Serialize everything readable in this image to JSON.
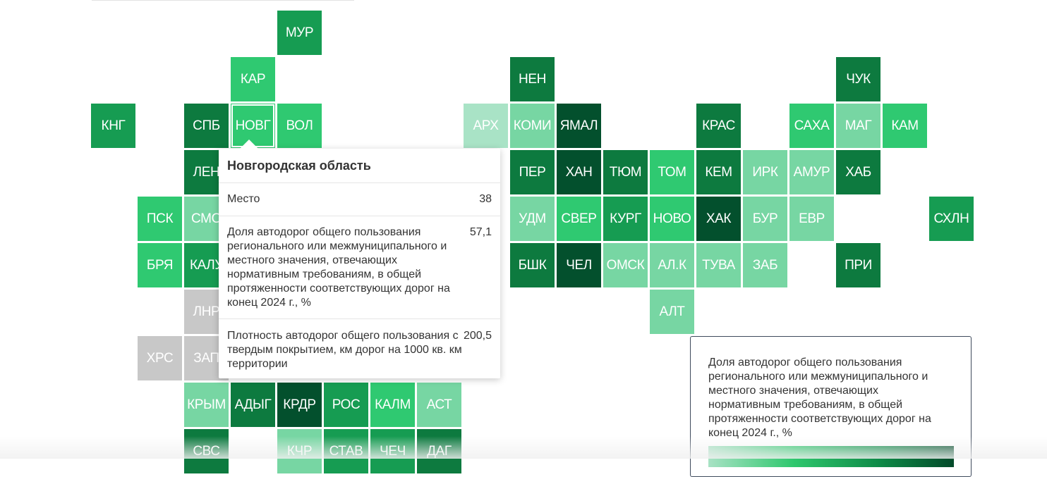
{
  "regions": [
    {
      "id": "mur",
      "label": "МУР",
      "rank": 2,
      "col": 6,
      "row": 0
    },
    {
      "id": "kar",
      "label": "КАР",
      "rank": 3,
      "col": 5,
      "row": 1
    },
    {
      "id": "nen",
      "label": "НЕН",
      "rank": 1,
      "col": 11,
      "row": 1
    },
    {
      "id": "chuk",
      "label": "ЧУК",
      "rank": 1,
      "col": 18,
      "row": 1
    },
    {
      "id": "kng",
      "label": "КНГ",
      "rank": 2,
      "col": 2,
      "row": 2
    },
    {
      "id": "spb",
      "label": "СПБ",
      "rank": 1,
      "col": 4,
      "row": 2
    },
    {
      "id": "novg",
      "label": "НОВГ",
      "rank": 3,
      "col": 5,
      "row": 2,
      "active": true
    },
    {
      "id": "vol",
      "label": "ВОЛ",
      "rank": 3,
      "col": 6,
      "row": 2
    },
    {
      "id": "arh",
      "label": "АРХ",
      "rank": 5,
      "col": 10,
      "row": 2
    },
    {
      "id": "komi",
      "label": "КОМИ",
      "rank": 4,
      "col": 11,
      "row": 2
    },
    {
      "id": "yamal",
      "label": "ЯМАЛ",
      "rank": 0,
      "col": 12,
      "row": 2
    },
    {
      "id": "kras",
      "label": "КРАС",
      "rank": 1,
      "col": 15,
      "row": 2
    },
    {
      "id": "saha",
      "label": "САХА",
      "rank": 3,
      "col": 17,
      "row": 2
    },
    {
      "id": "mag",
      "label": "МАГ",
      "rank": 4,
      "col": 18,
      "row": 2
    },
    {
      "id": "kam",
      "label": "КАМ",
      "rank": 3,
      "col": 19,
      "row": 2
    },
    {
      "id": "len",
      "label": "ЛЕН",
      "rank": 1,
      "col": 4,
      "row": 3
    },
    {
      "id": "per",
      "label": "ПЕР",
      "rank": 1,
      "col": 11,
      "row": 3
    },
    {
      "id": "han",
      "label": "ХАН",
      "rank": 0,
      "col": 12,
      "row": 3
    },
    {
      "id": "tyum",
      "label": "ТЮМ",
      "rank": 1,
      "col": 13,
      "row": 3
    },
    {
      "id": "tom",
      "label": "ТОМ",
      "rank": 3,
      "col": 14,
      "row": 3
    },
    {
      "id": "kem",
      "label": "КЕМ",
      "rank": 1,
      "col": 15,
      "row": 3
    },
    {
      "id": "irk",
      "label": "ИРК",
      "rank": 4,
      "col": 16,
      "row": 3
    },
    {
      "id": "amur",
      "label": "АМУР",
      "rank": 4,
      "col": 17,
      "row": 3
    },
    {
      "id": "hab",
      "label": "ХАБ",
      "rank": 1,
      "col": 18,
      "row": 3
    },
    {
      "id": "psk",
      "label": "ПСК",
      "rank": 3,
      "col": 3,
      "row": 4
    },
    {
      "id": "smo",
      "label": "СМО",
      "rank": 4,
      "col": 4,
      "row": 4
    },
    {
      "id": "udm",
      "label": "УДМ",
      "rank": 4,
      "col": 11,
      "row": 4
    },
    {
      "id": "sver",
      "label": "СВЕР",
      "rank": 3,
      "col": 12,
      "row": 4
    },
    {
      "id": "kurg",
      "label": "КУРГ",
      "rank": 2,
      "col": 13,
      "row": 4
    },
    {
      "id": "novo",
      "label": "НОВО",
      "rank": 3,
      "col": 14,
      "row": 4
    },
    {
      "id": "hak",
      "label": "ХАК",
      "rank": 0,
      "col": 15,
      "row": 4
    },
    {
      "id": "bur",
      "label": "БУР",
      "rank": 4,
      "col": 16,
      "row": 4
    },
    {
      "id": "evr",
      "label": "ЕВР",
      "rank": 4,
      "col": 17,
      "row": 4
    },
    {
      "id": "shln",
      "label": "СХЛН",
      "rank": 2,
      "col": 20,
      "row": 4
    },
    {
      "id": "brya",
      "label": "БРЯ",
      "rank": 3,
      "col": 3,
      "row": 5
    },
    {
      "id": "kalu",
      "label": "КАЛУ",
      "rank": 2,
      "col": 4,
      "row": 5
    },
    {
      "id": "bshk",
      "label": "БШК",
      "rank": 1,
      "col": 11,
      "row": 5
    },
    {
      "id": "chel",
      "label": "ЧЕЛ",
      "rank": 0,
      "col": 12,
      "row": 5
    },
    {
      "id": "omsk",
      "label": "ОМСК",
      "rank": 4,
      "col": 13,
      "row": 5
    },
    {
      "id": "alk",
      "label": "АЛ.К",
      "rank": 4,
      "col": 14,
      "row": 5
    },
    {
      "id": "tuva",
      "label": "ТУВА",
      "rank": 4,
      "col": 15,
      "row": 5
    },
    {
      "id": "zab",
      "label": "ЗАБ",
      "rank": 4,
      "col": 16,
      "row": 5
    },
    {
      "id": "pri",
      "label": "ПРИ",
      "rank": 1,
      "col": 18,
      "row": 5
    },
    {
      "id": "lnr",
      "label": "ЛНР",
      "rank": "na",
      "col": 4,
      "row": 6
    },
    {
      "id": "alt",
      "label": "АЛТ",
      "rank": 4,
      "col": 14,
      "row": 6
    },
    {
      "id": "hrs",
      "label": "ХРС",
      "rank": "na",
      "col": 3,
      "row": 7
    },
    {
      "id": "zap",
      "label": "ЗАП",
      "rank": "na",
      "col": 4,
      "row": 7
    },
    {
      "id": "krym",
      "label": "КРЫМ",
      "rank": 4,
      "col": 4,
      "row": 8
    },
    {
      "id": "adyg",
      "label": "АДЫГ",
      "rank": 1,
      "col": 5,
      "row": 8
    },
    {
      "id": "krdr",
      "label": "КРДР",
      "rank": 0,
      "col": 6,
      "row": 8
    },
    {
      "id": "ros",
      "label": "РОС",
      "rank": 2,
      "col": 7,
      "row": 8
    },
    {
      "id": "kalm",
      "label": "КАЛМ",
      "rank": 3,
      "col": 8,
      "row": 8
    },
    {
      "id": "ast",
      "label": "АСТ",
      "rank": 4,
      "col": 9,
      "row": 8
    },
    {
      "id": "svs",
      "label": "СВС",
      "rank": 1,
      "col": 4,
      "row": 9
    },
    {
      "id": "kchr",
      "label": "КЧР",
      "rank": 4,
      "col": 6,
      "row": 9
    },
    {
      "id": "stav",
      "label": "СТАВ",
      "rank": 2,
      "col": 7,
      "row": 9
    },
    {
      "id": "chech",
      "label": "ЧЕЧ",
      "rank": 2,
      "col": 8,
      "row": 9
    },
    {
      "id": "dag",
      "label": "ДАГ",
      "rank": 1,
      "col": 9,
      "row": 9
    }
  ],
  "colors": {
    "r0": "#03502d",
    "r1": "#0d7a3f",
    "r2": "#169c52",
    "r3": "#2fc971",
    "r4": "#77d6a3",
    "r5": "#a9e3c6",
    "na": "#c8c8c8"
  },
  "tooltip": {
    "title": "Новгородская область",
    "rows": [
      {
        "label": "Место",
        "value": "38"
      },
      {
        "label": "Доля автодорог общего пользования регионального или межмуниципального и местного значения, отвечающих нормативным требованиям, в общей протяженности соответствующих дорог на конец 2024 г., %",
        "value": "57,1"
      },
      {
        "label": "Плотность автодорог общего пользования с твердым покрытием, км дорог на 1000 кв. км территории",
        "value": "200,5"
      }
    ]
  },
  "legend": {
    "title": "Доля автодорог общего пользования регионального или межмуниципального и местного значения, отвечающих нормативным требованиям, в общей протяженности соответствующих дорог на конец 2024 г., %"
  }
}
